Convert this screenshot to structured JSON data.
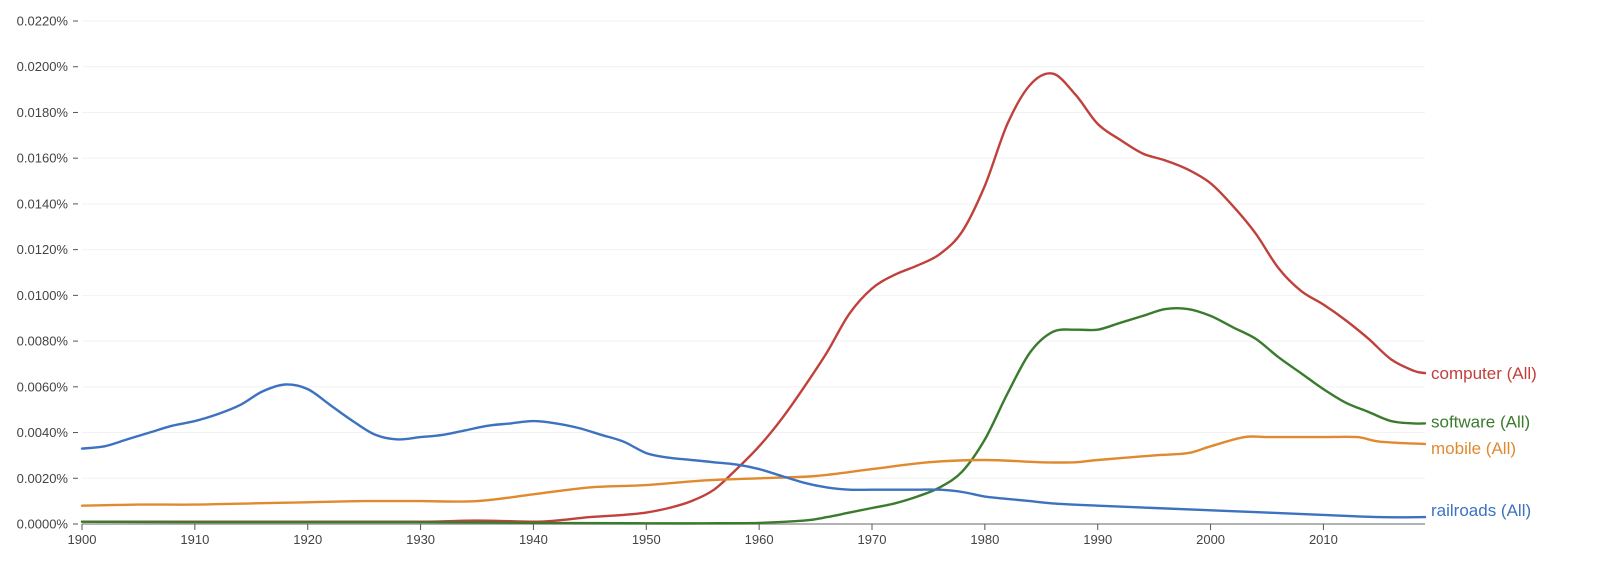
{
  "chart_data": {
    "type": "line",
    "xlim": [
      1900,
      2019
    ],
    "ylim": [
      0,
      0.022
    ],
    "y_tick_values": [
      0,
      0.002,
      0.004,
      0.006,
      0.008,
      0.01,
      0.012,
      0.014,
      0.016,
      0.018,
      0.02,
      0.022
    ],
    "y_tick_labels": [
      "0.0000%",
      "0.0020%",
      "0.0040%",
      "0.0060%",
      "0.0080%",
      "0.0100%",
      "0.0120%",
      "0.0140%",
      "0.0160%",
      "0.0180%",
      "0.0200%",
      "0.0220%"
    ],
    "x_tick_values": [
      1900,
      1910,
      1920,
      1930,
      1940,
      1950,
      1960,
      1970,
      1980,
      1990,
      2000,
      2010
    ],
    "x_tick_labels": [
      "1900",
      "1910",
      "1920",
      "1930",
      "1940",
      "1950",
      "1960",
      "1970",
      "1980",
      "1990",
      "2000",
      "2010"
    ],
    "grid": true,
    "legend": "inline labels at right end of lines",
    "series": [
      {
        "name": "computer (All)",
        "color": "#c0413b",
        "points": [
          [
            1900,
            0.0001
          ],
          [
            1905,
            0.0001
          ],
          [
            1910,
            0.0001
          ],
          [
            1920,
            0.0001
          ],
          [
            1930,
            0.0001
          ],
          [
            1935,
            0.00015
          ],
          [
            1940,
            0.0001
          ],
          [
            1942,
            0.00015
          ],
          [
            1945,
            0.0003
          ],
          [
            1948,
            0.0004
          ],
          [
            1950,
            0.0005
          ],
          [
            1952,
            0.0007
          ],
          [
            1954,
            0.001
          ],
          [
            1956,
            0.0015
          ],
          [
            1958,
            0.0024
          ],
          [
            1960,
            0.0034
          ],
          [
            1962,
            0.0046
          ],
          [
            1964,
            0.006
          ],
          [
            1966,
            0.0075
          ],
          [
            1968,
            0.0092
          ],
          [
            1970,
            0.0103
          ],
          [
            1972,
            0.0109
          ],
          [
            1974,
            0.0113
          ],
          [
            1976,
            0.0118
          ],
          [
            1978,
            0.0128
          ],
          [
            1980,
            0.0148
          ],
          [
            1982,
            0.0175
          ],
          [
            1984,
            0.0192
          ],
          [
            1986,
            0.0197
          ],
          [
            1988,
            0.0188
          ],
          [
            1990,
            0.0175
          ],
          [
            1992,
            0.0168
          ],
          [
            1994,
            0.0162
          ],
          [
            1996,
            0.0159
          ],
          [
            1998,
            0.0155
          ],
          [
            2000,
            0.0149
          ],
          [
            2002,
            0.0139
          ],
          [
            2004,
            0.0127
          ],
          [
            2006,
            0.0112
          ],
          [
            2008,
            0.0102
          ],
          [
            2010,
            0.0096
          ],
          [
            2012,
            0.0089
          ],
          [
            2014,
            0.0081
          ],
          [
            2016,
            0.0072
          ],
          [
            2018,
            0.0067
          ],
          [
            2019,
            0.0066
          ]
        ]
      },
      {
        "name": "software (All)",
        "color": "#3a7b2e",
        "points": [
          [
            1900,
            0.0001
          ],
          [
            1910,
            8e-05
          ],
          [
            1920,
            8e-05
          ],
          [
            1930,
            8e-05
          ],
          [
            1940,
            5e-05
          ],
          [
            1950,
            3e-05
          ],
          [
            1955,
            3e-05
          ],
          [
            1960,
            5e-05
          ],
          [
            1964,
            0.00015
          ],
          [
            1966,
            0.0003
          ],
          [
            1968,
            0.0005
          ],
          [
            1970,
            0.0007
          ],
          [
            1972,
            0.0009
          ],
          [
            1974,
            0.0012
          ],
          [
            1976,
            0.0016
          ],
          [
            1978,
            0.0023
          ],
          [
            1980,
            0.0037
          ],
          [
            1982,
            0.0057
          ],
          [
            1984,
            0.0075
          ],
          [
            1986,
            0.0084
          ],
          [
            1988,
            0.0085
          ],
          [
            1990,
            0.0085
          ],
          [
            1992,
            0.0088
          ],
          [
            1994,
            0.0091
          ],
          [
            1996,
            0.0094
          ],
          [
            1998,
            0.0094
          ],
          [
            2000,
            0.0091
          ],
          [
            2002,
            0.0086
          ],
          [
            2004,
            0.0081
          ],
          [
            2006,
            0.0073
          ],
          [
            2008,
            0.0066
          ],
          [
            2010,
            0.0059
          ],
          [
            2012,
            0.0053
          ],
          [
            2014,
            0.0049
          ],
          [
            2016,
            0.0045
          ],
          [
            2018,
            0.0044
          ],
          [
            2019,
            0.0044
          ]
        ]
      },
      {
        "name": "mobile (All)",
        "color": "#e08a2f",
        "points": [
          [
            1900,
            0.0008
          ],
          [
            1905,
            0.00085
          ],
          [
            1910,
            0.00085
          ],
          [
            1915,
            0.0009
          ],
          [
            1920,
            0.00095
          ],
          [
            1925,
            0.001
          ],
          [
            1930,
            0.001
          ],
          [
            1935,
            0.001
          ],
          [
            1940,
            0.0013
          ],
          [
            1945,
            0.0016
          ],
          [
            1950,
            0.0017
          ],
          [
            1955,
            0.0019
          ],
          [
            1960,
            0.002
          ],
          [
            1965,
            0.0021
          ],
          [
            1970,
            0.0024
          ],
          [
            1975,
            0.0027
          ],
          [
            1980,
            0.0028
          ],
          [
            1985,
            0.0027
          ],
          [
            1988,
            0.0027
          ],
          [
            1990,
            0.0028
          ],
          [
            1995,
            0.003
          ],
          [
            1998,
            0.0031
          ],
          [
            2000,
            0.0034
          ],
          [
            2003,
            0.0038
          ],
          [
            2005,
            0.0038
          ],
          [
            2008,
            0.0038
          ],
          [
            2010,
            0.0038
          ],
          [
            2013,
            0.0038
          ],
          [
            2015,
            0.0036
          ],
          [
            2019,
            0.0035
          ]
        ]
      },
      {
        "name": "railroads (All)",
        "color": "#3d72c0",
        "points": [
          [
            1900,
            0.0033
          ],
          [
            1902,
            0.0034
          ],
          [
            1904,
            0.0037
          ],
          [
            1906,
            0.004
          ],
          [
            1908,
            0.0043
          ],
          [
            1910,
            0.0045
          ],
          [
            1912,
            0.0048
          ],
          [
            1914,
            0.0052
          ],
          [
            1916,
            0.0058
          ],
          [
            1918,
            0.0061
          ],
          [
            1920,
            0.0059
          ],
          [
            1922,
            0.0052
          ],
          [
            1924,
            0.0045
          ],
          [
            1926,
            0.0039
          ],
          [
            1928,
            0.0037
          ],
          [
            1930,
            0.0038
          ],
          [
            1932,
            0.0039
          ],
          [
            1934,
            0.0041
          ],
          [
            1936,
            0.0043
          ],
          [
            1938,
            0.0044
          ],
          [
            1940,
            0.0045
          ],
          [
            1942,
            0.0044
          ],
          [
            1944,
            0.0042
          ],
          [
            1946,
            0.0039
          ],
          [
            1948,
            0.0036
          ],
          [
            1950,
            0.0031
          ],
          [
            1952,
            0.0029
          ],
          [
            1954,
            0.0028
          ],
          [
            1956,
            0.0027
          ],
          [
            1958,
            0.0026
          ],
          [
            1960,
            0.0024
          ],
          [
            1962,
            0.0021
          ],
          [
            1964,
            0.0018
          ],
          [
            1966,
            0.0016
          ],
          [
            1968,
            0.0015
          ],
          [
            1970,
            0.0015
          ],
          [
            1972,
            0.0015
          ],
          [
            1974,
            0.0015
          ],
          [
            1976,
            0.0015
          ],
          [
            1978,
            0.0014
          ],
          [
            1980,
            0.0012
          ],
          [
            1982,
            0.0011
          ],
          [
            1984,
            0.001
          ],
          [
            1986,
            0.0009
          ],
          [
            1990,
            0.0008
          ],
          [
            1995,
            0.0007
          ],
          [
            2000,
            0.0006
          ],
          [
            2005,
            0.0005
          ],
          [
            2010,
            0.0004
          ],
          [
            2015,
            0.0003
          ],
          [
            2019,
            0.0003
          ]
        ]
      }
    ]
  }
}
